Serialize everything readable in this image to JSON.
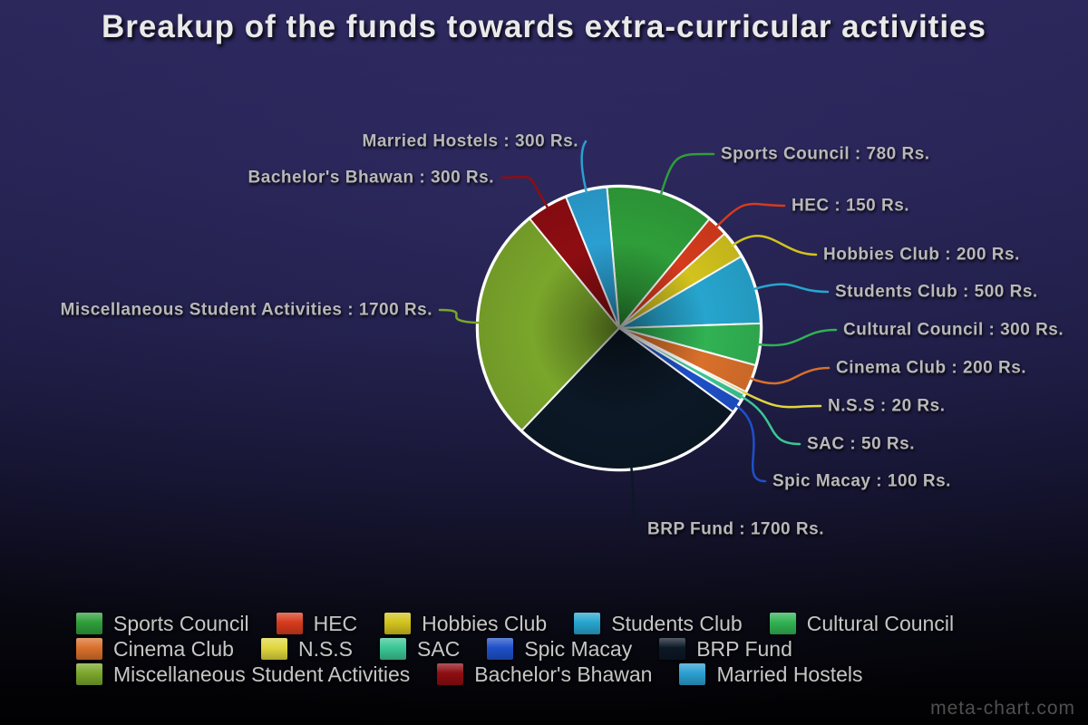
{
  "chart_data": {
    "type": "pie",
    "title": "Breakup of the funds towards extra-curricular activities",
    "unit": "Rs.",
    "total": 6300,
    "start_angle_deg": -5,
    "clockwise": true,
    "legend_position": "bottom",
    "slices": [
      {
        "label": "Sports Council",
        "value": 780,
        "color": "#2f9e3a",
        "callout": "Sports Council : 780 Rs."
      },
      {
        "label": "HEC",
        "value": 150,
        "color": "#d63b1d",
        "callout": "HEC : 150 Rs."
      },
      {
        "label": "Hobbies Club",
        "value": 200,
        "color": "#d2c31d",
        "callout": "Hobbies Club : 200 Rs."
      },
      {
        "label": "Students Club",
        "value": 500,
        "color": "#27a5ce",
        "callout": "Students Club : 500 Rs."
      },
      {
        "label": "Cultural Council",
        "value": 300,
        "color": "#31b253",
        "callout": "Cultural Council : 300 Rs."
      },
      {
        "label": "Cinema Club",
        "value": 200,
        "color": "#d9702b",
        "callout": "Cinema Club : 200 Rs."
      },
      {
        "label": "N.S.S",
        "value": 20,
        "color": "#e0d63e",
        "callout": "N.S.S : 20 Rs."
      },
      {
        "label": "SAC",
        "value": 50,
        "color": "#3bc795",
        "callout": "SAC : 50 Rs."
      },
      {
        "label": "Spic Macay",
        "value": 100,
        "color": "#1e50c8",
        "callout": "Spic Macay : 100 Rs."
      },
      {
        "label": "BRP Fund",
        "value": 1700,
        "color": "#0c1826",
        "callout": "BRP Fund : 1700 Rs."
      },
      {
        "label": "Miscellaneous Student Activities",
        "value": 1700,
        "color": "#7aa62b",
        "callout": "Miscellaneous Student Activities : 1700 Rs."
      },
      {
        "label": "Bachelor's Bhawan",
        "value": 300,
        "color": "#8e0d12",
        "callout": "Bachelor's Bhawan : 300 Rs."
      },
      {
        "label": "Married Hostels",
        "value": 300,
        "color": "#2b9fd1",
        "callout": "Married Hostels : 300 Rs."
      }
    ]
  },
  "legend": {
    "rows": [
      [
        "Sports Council",
        "HEC",
        "Hobbies Club",
        "Students Club",
        "Cultural Council"
      ],
      [
        "Cinema Club",
        "N.S.S",
        "SAC",
        "Spic Macay",
        "BRP Fund"
      ],
      [
        "Miscellaneous Student Activities",
        "Bachelor's Bhawan",
        "Married Hostels"
      ]
    ]
  },
  "watermark": "meta-chart.com",
  "colors": {
    "slice_stroke": "#ffffff",
    "title_text": "#e9e9e9",
    "callout_text": "#b8b8b8",
    "legend_text": "#c6c6c6",
    "background_top": "#2a2659",
    "background_bottom": "#010102"
  }
}
